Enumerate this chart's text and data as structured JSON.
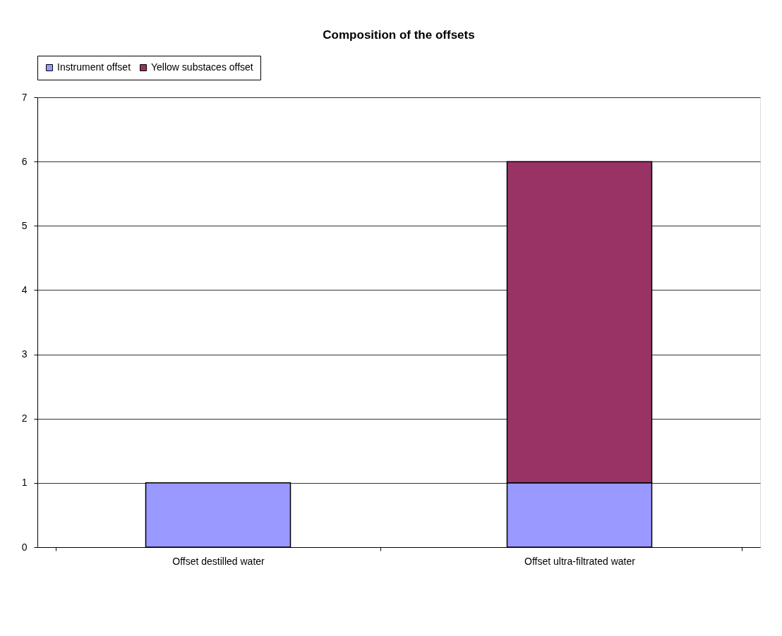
{
  "chart_data": {
    "type": "bar",
    "title": "Composition of the offsets",
    "stacked": true,
    "categories": [
      "Offset destilled water",
      "Offset ultra-filtrated water"
    ],
    "series": [
      {
        "name": "Instrument offset",
        "color": "#9999ff",
        "values": [
          1,
          1
        ]
      },
      {
        "name": "Yellow substaces offset",
        "color": "#993366",
        "values": [
          null,
          5
        ]
      }
    ],
    "ylim": [
      0,
      7
    ],
    "yticks": [
      0,
      1,
      2,
      3,
      4,
      5,
      6,
      7
    ],
    "grid": "y",
    "legend": "top"
  }
}
